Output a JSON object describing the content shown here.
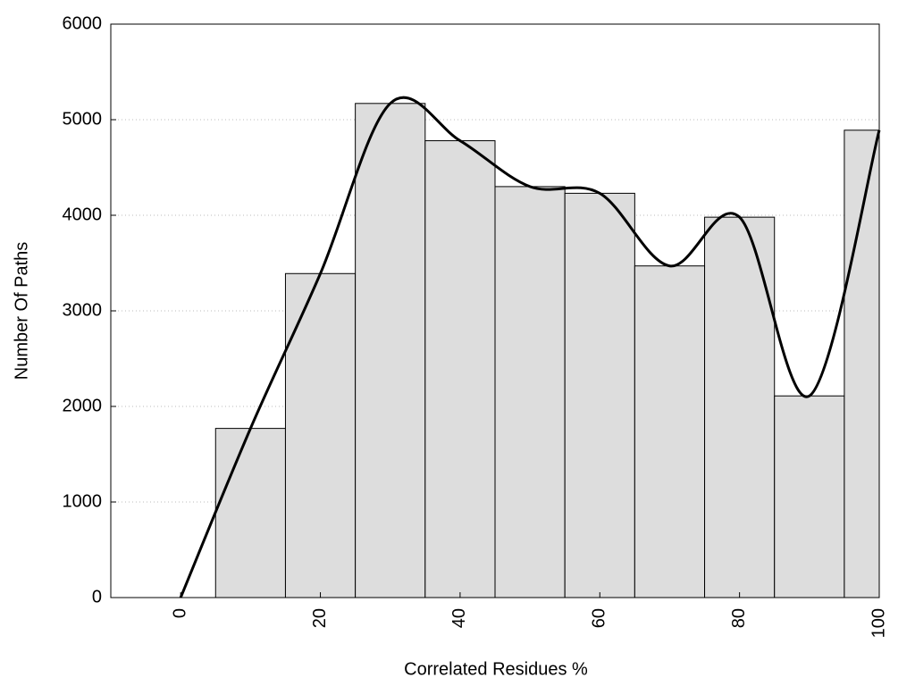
{
  "chart_data": {
    "type": "histogram",
    "xlabel": "Correlated Residues %",
    "ylabel": "Number Of Paths",
    "bins": [
      5,
      15,
      25,
      35,
      45,
      55,
      65,
      75,
      85,
      95,
      100
    ],
    "values": [
      1770,
      3390,
      5170,
      4780,
      4300,
      4230,
      3470,
      3980,
      2110,
      4890
    ],
    "color": "#dddddd",
    "overlay": {
      "type": "line",
      "x": [
        0,
        10,
        20,
        30,
        40,
        50,
        60,
        70,
        80,
        90,
        100
      ],
      "values": [
        0,
        1770,
        3390,
        5170,
        4780,
        4300,
        4230,
        3470,
        3980,
        2110,
        4890
      ],
      "color": "#000000"
    },
    "xlim": [
      -10,
      100
    ],
    "xticks": [
      0,
      20,
      40,
      60,
      80,
      100
    ],
    "ylim": [
      0,
      6000
    ],
    "yticks": [
      0,
      1000,
      2000,
      3000,
      4000,
      5000,
      6000
    ],
    "grid": true
  }
}
